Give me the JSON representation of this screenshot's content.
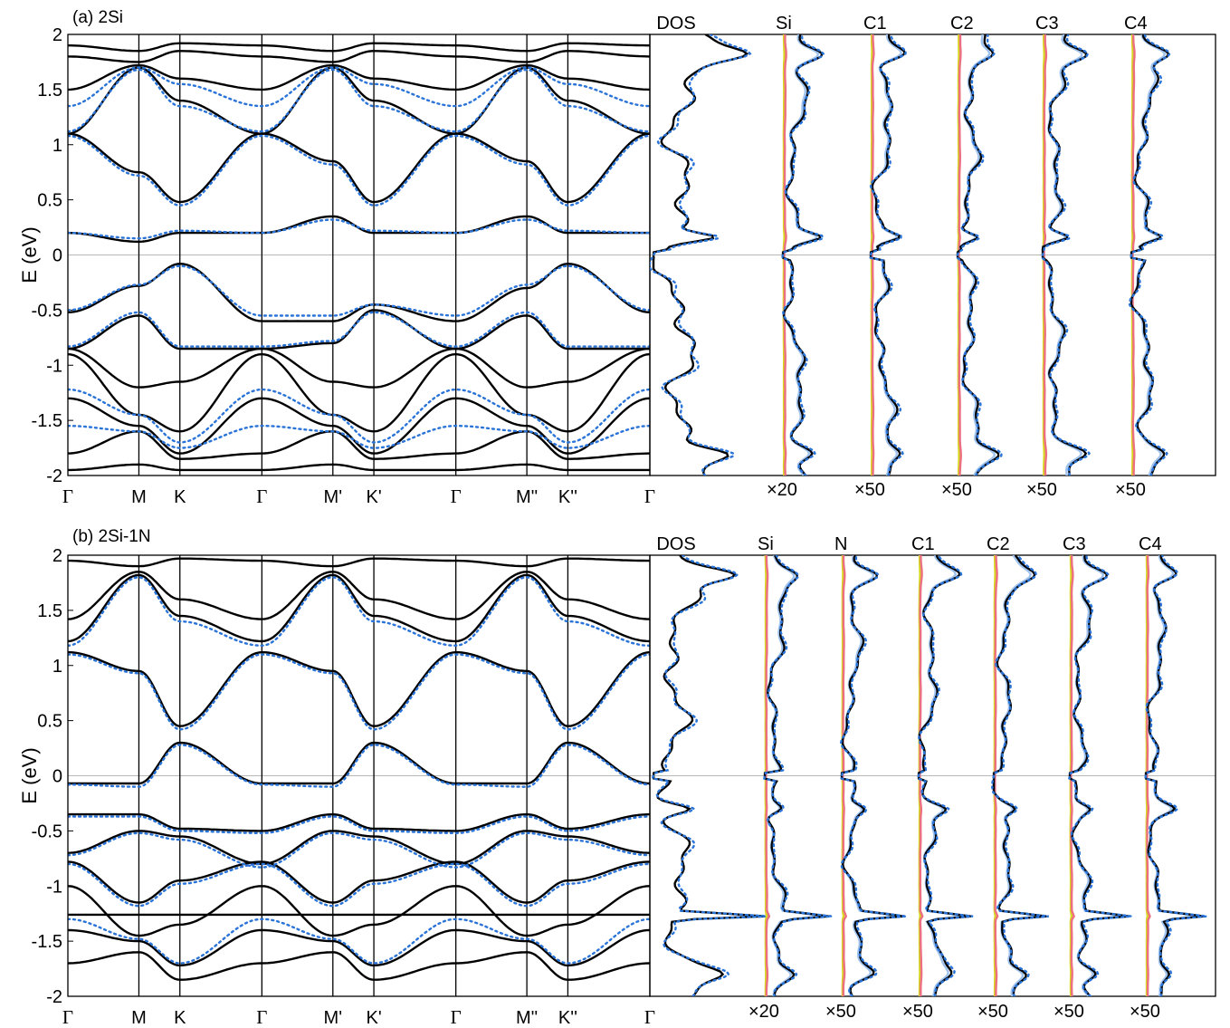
{
  "chart_data": [
    {
      "type": "line",
      "panel_title": "(a) 2Si",
      "ylabel": "E (eV)",
      "ylim": [
        -2,
        2
      ],
      "yticks": [
        -2,
        -1.5,
        -1,
        -0.5,
        0,
        0.5,
        1,
        1.5,
        2
      ],
      "ytick_labels": [
        "-2",
        "-1.5",
        "-1",
        "-0.5",
        "0",
        "0.5",
        "1",
        "1.5",
        "2"
      ],
      "k_labels": [
        "Γ",
        "M",
        "K",
        "Γ",
        "M'",
        "K'",
        "Γ",
        "M''",
        "K''",
        "Γ"
      ],
      "k_positions": [
        0,
        1,
        1.5774,
        2.7321,
        3.7321,
        4.3094,
        5.4641,
        6.4641,
        7.0415,
        8.1962
      ],
      "bands": [
        {
          "style": "solid",
          "E": [
            0.2,
            0.12,
            0.2,
            0.2,
            0.35,
            0.2,
            0.2,
            0.35,
            0.2,
            0.2
          ]
        },
        {
          "style": "solid",
          "E": [
            1.1,
            0.75,
            0.48,
            1.1,
            0.85,
            0.48,
            1.1,
            0.85,
            0.48,
            1.1
          ]
        },
        {
          "style": "solid",
          "E": [
            1.1,
            1.7,
            1.4,
            1.1,
            1.7,
            1.4,
            1.1,
            1.7,
            1.4,
            1.1
          ]
        },
        {
          "style": "solid",
          "E": [
            1.5,
            1.72,
            1.6,
            1.5,
            1.72,
            1.6,
            1.5,
            1.72,
            1.6,
            1.5
          ]
        },
        {
          "style": "solid",
          "E": [
            1.8,
            1.75,
            1.85,
            1.8,
            1.75,
            1.85,
            1.8,
            1.75,
            1.85,
            1.8
          ]
        },
        {
          "style": "solid",
          "E": [
            1.9,
            1.85,
            1.92,
            1.9,
            1.85,
            1.92,
            1.9,
            1.85,
            1.92,
            1.9
          ]
        },
        {
          "style": "solid",
          "E": [
            -0.52,
            -0.28,
            -0.08,
            -0.6,
            -0.6,
            -0.45,
            -0.6,
            -0.3,
            -0.08,
            -0.52
          ]
        },
        {
          "style": "solid",
          "E": [
            -0.85,
            -0.55,
            -0.85,
            -0.85,
            -0.8,
            -0.5,
            -0.85,
            -0.55,
            -0.85,
            -0.85
          ]
        },
        {
          "style": "solid",
          "E": [
            -0.85,
            -1.2,
            -1.15,
            -0.85,
            -1.15,
            -1.2,
            -0.85,
            -1.2,
            -1.15,
            -0.85
          ]
        },
        {
          "style": "solid",
          "E": [
            -0.9,
            -1.45,
            -1.6,
            -0.9,
            -1.45,
            -1.6,
            -0.9,
            -1.45,
            -1.6,
            -0.9
          ]
        },
        {
          "style": "solid",
          "E": [
            -1.3,
            -1.55,
            -1.8,
            -1.3,
            -1.55,
            -1.8,
            -1.3,
            -1.55,
            -1.8,
            -1.3
          ]
        },
        {
          "style": "solid",
          "E": [
            -1.8,
            -1.6,
            -1.85,
            -1.8,
            -1.6,
            -1.85,
            -1.8,
            -1.6,
            -1.85,
            -1.8
          ]
        },
        {
          "style": "solid",
          "E": [
            -1.95,
            -1.9,
            -1.95,
            -1.95,
            -1.9,
            -1.95,
            -1.95,
            -1.9,
            -1.95,
            -1.95
          ]
        },
        {
          "style": "dotted",
          "E": [
            0.2,
            0.15,
            0.22,
            0.2,
            0.32,
            0.22,
            0.2,
            0.32,
            0.22,
            0.2
          ]
        },
        {
          "style": "dotted",
          "E": [
            1.08,
            0.72,
            0.45,
            1.08,
            0.82,
            0.45,
            1.08,
            0.82,
            0.45,
            1.08
          ]
        },
        {
          "style": "dotted",
          "E": [
            1.12,
            1.68,
            1.35,
            1.12,
            1.68,
            1.35,
            1.12,
            1.68,
            1.35,
            1.12
          ]
        },
        {
          "style": "dotted",
          "E": [
            1.35,
            1.7,
            1.55,
            1.35,
            1.7,
            1.55,
            1.35,
            1.7,
            1.55,
            1.35
          ]
        },
        {
          "style": "dotted",
          "E": [
            -0.5,
            -0.27,
            -0.1,
            -0.55,
            -0.55,
            -0.45,
            -0.55,
            -0.27,
            -0.1,
            -0.5
          ]
        },
        {
          "style": "dotted",
          "E": [
            -0.83,
            -0.52,
            -0.83,
            -0.83,
            -0.78,
            -0.52,
            -0.83,
            -0.52,
            -0.83,
            -0.83
          ]
        },
        {
          "style": "dotted",
          "E": [
            -1.22,
            -1.45,
            -1.7,
            -1.22,
            -1.45,
            -1.7,
            -1.22,
            -1.45,
            -1.7,
            -1.22
          ]
        },
        {
          "style": "dotted",
          "E": [
            -1.55,
            -1.6,
            -1.75,
            -1.55,
            -1.6,
            -1.75,
            -1.55,
            -1.6,
            -1.75,
            -1.55
          ]
        }
      ],
      "dos_columns": [
        {
          "label": "DOS",
          "scale": ""
        },
        {
          "label": "Si",
          "scale": "×20"
        },
        {
          "label": "C1",
          "scale": "×50"
        },
        {
          "label": "C2",
          "scale": "×50"
        },
        {
          "label": "C3",
          "scale": "×50"
        },
        {
          "label": "C4",
          "scale": "×50"
        }
      ]
    },
    {
      "type": "line",
      "panel_title": "(b) 2Si-1N",
      "ylabel": "E (eV)",
      "ylim": [
        -2,
        2
      ],
      "yticks": [
        -2,
        -1.5,
        -1,
        -0.5,
        0,
        0.5,
        1,
        1.5,
        2
      ],
      "ytick_labels": [
        "-2",
        "-1.5",
        "-1",
        "-0.5",
        "0",
        "0.5",
        "1",
        "1.5",
        "2"
      ],
      "k_labels": [
        "Γ",
        "M",
        "K",
        "Γ",
        "M'",
        "K'",
        "Γ",
        "M''",
        "K''",
        "Γ"
      ],
      "k_positions": [
        0,
        1,
        1.5774,
        2.7321,
        3.7321,
        4.3094,
        5.4641,
        6.4641,
        7.0415,
        8.1962
      ],
      "bands": [
        {
          "style": "solid",
          "E": [
            -1.26,
            -1.26,
            -1.26,
            -1.26,
            -1.26,
            -1.26,
            -1.26,
            -1.26,
            -1.26,
            -1.26
          ]
        },
        {
          "style": "solid",
          "E": [
            -0.07,
            -0.07,
            0.3,
            -0.07,
            -0.07,
            0.3,
            -0.07,
            -0.07,
            0.3,
            -0.07
          ]
        },
        {
          "style": "solid",
          "E": [
            1.12,
            0.95,
            0.45,
            1.12,
            0.95,
            0.45,
            1.12,
            0.95,
            0.45,
            1.12
          ]
        },
        {
          "style": "solid",
          "E": [
            1.22,
            1.82,
            1.45,
            1.22,
            1.82,
            1.45,
            1.22,
            1.82,
            1.45,
            1.22
          ]
        },
        {
          "style": "solid",
          "E": [
            1.42,
            1.85,
            1.6,
            1.42,
            1.85,
            1.6,
            1.42,
            1.85,
            1.6,
            1.42
          ]
        },
        {
          "style": "solid",
          "E": [
            1.95,
            1.9,
            1.97,
            1.95,
            1.9,
            1.97,
            1.95,
            1.9,
            1.97,
            1.95
          ]
        },
        {
          "style": "solid",
          "E": [
            -0.35,
            -0.35,
            -0.48,
            -0.5,
            -0.35,
            -0.48,
            -0.5,
            -0.35,
            -0.48,
            -0.35
          ]
        },
        {
          "style": "solid",
          "E": [
            -0.7,
            -0.5,
            -0.55,
            -0.8,
            -0.5,
            -0.55,
            -0.8,
            -0.5,
            -0.55,
            -0.7
          ]
        },
        {
          "style": "solid",
          "E": [
            -0.78,
            -1.15,
            -0.95,
            -0.78,
            -1.15,
            -0.95,
            -0.78,
            -1.15,
            -0.95,
            -0.78
          ]
        },
        {
          "style": "solid",
          "E": [
            -1.0,
            -1.45,
            -1.35,
            -1.0,
            -1.45,
            -1.35,
            -1.0,
            -1.45,
            -1.35,
            -1.0
          ]
        },
        {
          "style": "solid",
          "E": [
            -1.4,
            -1.5,
            -1.72,
            -1.4,
            -1.5,
            -1.72,
            -1.4,
            -1.5,
            -1.72,
            -1.4
          ]
        },
        {
          "style": "solid",
          "E": [
            -1.7,
            -1.6,
            -1.85,
            -1.7,
            -1.6,
            -1.85,
            -1.7,
            -1.6,
            -1.85,
            -1.7
          ]
        },
        {
          "style": "dotted",
          "E": [
            -0.08,
            -0.1,
            0.28,
            -0.08,
            -0.1,
            0.28,
            -0.08,
            -0.1,
            0.28,
            -0.08
          ]
        },
        {
          "style": "dotted",
          "E": [
            1.1,
            0.93,
            0.42,
            1.1,
            0.93,
            0.42,
            1.1,
            0.93,
            0.42,
            1.1
          ]
        },
        {
          "style": "dotted",
          "E": [
            1.18,
            1.8,
            1.4,
            1.18,
            1.8,
            1.4,
            1.18,
            1.8,
            1.4,
            1.18
          ]
        },
        {
          "style": "dotted",
          "E": [
            -0.37,
            -0.37,
            -0.5,
            -0.52,
            -0.37,
            -0.5,
            -0.52,
            -0.37,
            -0.5,
            -0.37
          ]
        },
        {
          "style": "dotted",
          "E": [
            -0.72,
            -0.52,
            -0.58,
            -0.83,
            -0.52,
            -0.58,
            -0.83,
            -0.52,
            -0.58,
            -0.72
          ]
        },
        {
          "style": "dotted",
          "E": [
            -0.8,
            -1.18,
            -0.98,
            -0.8,
            -1.18,
            -0.98,
            -0.8,
            -1.18,
            -0.98,
            -0.8
          ]
        },
        {
          "style": "dotted",
          "E": [
            -1.3,
            -1.48,
            -1.7,
            -1.3,
            -1.48,
            -1.7,
            -1.3,
            -1.48,
            -1.7,
            -1.3
          ]
        }
      ],
      "dos_columns": [
        {
          "label": "DOS",
          "scale": ""
        },
        {
          "label": "Si",
          "scale": "×20"
        },
        {
          "label": "N",
          "scale": "×50"
        },
        {
          "label": "C1",
          "scale": "×50"
        },
        {
          "label": "C2",
          "scale": "×50"
        },
        {
          "label": "C3",
          "scale": "×50"
        },
        {
          "label": "C4",
          "scale": "×50"
        }
      ]
    }
  ]
}
